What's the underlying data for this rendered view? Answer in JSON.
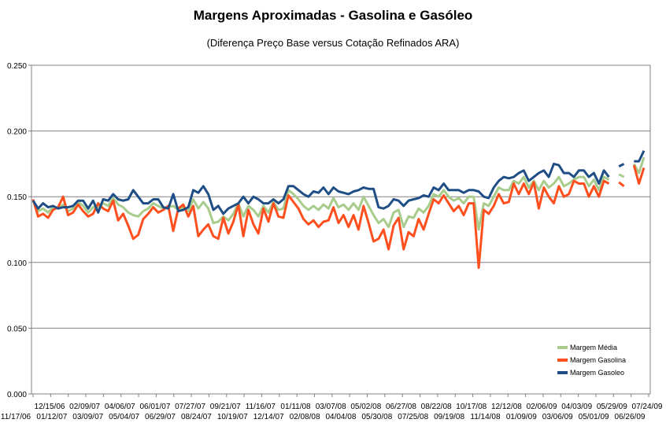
{
  "chart_data": {
    "type": "line",
    "title": "Margens Aproximadas - Gasolina e Gasóleo",
    "subtitle": "(Diferença Preço Base versus Cotação Refinados ARA)",
    "xlabel": "",
    "ylabel": "",
    "ylim": [
      0,
      0.25
    ],
    "y_ticks": [
      "0.000",
      "0.050",
      "0.100",
      "0.150",
      "0.200",
      "0.250"
    ],
    "grid": true,
    "legend_position": "bottom-right",
    "x_tick_labels_upper": [
      "12/15/06",
      "02/09/07",
      "04/06/07",
      "06/01/07",
      "07/27/07",
      "09/21/07",
      "11/16/07",
      "01/11/08",
      "03/07/08",
      "05/02/08",
      "06/27/08",
      "08/22/08",
      "10/17/08",
      "12/12/08",
      "02/06/09",
      "04/03/09",
      "05/29/09",
      "07/24/09"
    ],
    "x_tick_labels_lower": [
      "11/17/06",
      "01/12/07",
      "03/09/07",
      "05/04/07",
      "06/29/07",
      "08/24/07",
      "10/19/07",
      "12/14/07",
      "02/08/08",
      "04/04/08",
      "05/30/08",
      "07/25/08",
      "09/19/08",
      "11/14/08",
      "01/09/09",
      "03/06/09",
      "05/01/09",
      "06/26/09"
    ],
    "series": [
      {
        "name": "Margem Média",
        "color": "#a8cc8c",
        "values": [
          0.147,
          0.139,
          0.141,
          0.138,
          0.142,
          0.141,
          0.144,
          0.139,
          0.141,
          0.146,
          0.143,
          0.138,
          0.142,
          0.142,
          0.145,
          0.143,
          0.149,
          0.144,
          0.142,
          0.138,
          0.136,
          0.135,
          0.139,
          0.141,
          0.145,
          0.143,
          0.141,
          0.142,
          0.143,
          0.14,
          0.142,
          0.139,
          0.148,
          0.141,
          0.146,
          0.141,
          0.13,
          0.131,
          0.135,
          0.132,
          0.137,
          0.145,
          0.135,
          0.143,
          0.14,
          0.135,
          0.143,
          0.138,
          0.146,
          0.14,
          0.141,
          0.155,
          0.152,
          0.148,
          0.143,
          0.14,
          0.143,
          0.14,
          0.144,
          0.141,
          0.149,
          0.142,
          0.144,
          0.14,
          0.145,
          0.14,
          0.15,
          0.143,
          0.136,
          0.13,
          0.133,
          0.127,
          0.138,
          0.14,
          0.127,
          0.135,
          0.134,
          0.141,
          0.138,
          0.143,
          0.152,
          0.15,
          0.155,
          0.15,
          0.147,
          0.149,
          0.145,
          0.15,
          0.15,
          0.125,
          0.145,
          0.143,
          0.15,
          0.157,
          0.155,
          0.155,
          0.162,
          0.16,
          0.165,
          0.157,
          0.162,
          0.155,
          0.162,
          0.157,
          0.16,
          0.165,
          0.158,
          0.16,
          0.163,
          0.165,
          0.165,
          0.158,
          0.163,
          0.155,
          0.165,
          0.163,
          null,
          0.167,
          0.165,
          null,
          0.175,
          0.168,
          0.18
        ],
        "segments": [
          [
            0,
            115
          ],
          [
            117,
            118
          ],
          [
            120,
            122
          ]
        ]
      },
      {
        "name": "Margem Gasolina",
        "color": "#ff4f1e",
        "values": [
          0.148,
          0.135,
          0.137,
          0.134,
          0.14,
          0.142,
          0.15,
          0.136,
          0.138,
          0.144,
          0.139,
          0.135,
          0.137,
          0.145,
          0.141,
          0.139,
          0.147,
          0.132,
          0.137,
          0.128,
          0.118,
          0.121,
          0.133,
          0.137,
          0.142,
          0.138,
          0.14,
          0.143,
          0.124,
          0.141,
          0.144,
          0.135,
          0.143,
          0.12,
          0.125,
          0.129,
          0.12,
          0.118,
          0.134,
          0.122,
          0.131,
          0.144,
          0.12,
          0.14,
          0.129,
          0.122,
          0.141,
          0.131,
          0.145,
          0.135,
          0.134,
          0.151,
          0.146,
          0.141,
          0.133,
          0.129,
          0.132,
          0.127,
          0.131,
          0.132,
          0.142,
          0.13,
          0.136,
          0.127,
          0.136,
          0.125,
          0.143,
          0.13,
          0.116,
          0.118,
          0.125,
          0.11,
          0.128,
          0.134,
          0.11,
          0.123,
          0.12,
          0.133,
          0.125,
          0.137,
          0.148,
          0.145,
          0.151,
          0.145,
          0.139,
          0.143,
          0.136,
          0.145,
          0.145,
          0.096,
          0.14,
          0.137,
          0.143,
          0.152,
          0.145,
          0.146,
          0.16,
          0.152,
          0.16,
          0.152,
          0.161,
          0.141,
          0.157,
          0.15,
          0.145,
          0.158,
          0.15,
          0.152,
          0.162,
          0.16,
          0.16,
          0.15,
          0.158,
          0.15,
          0.162,
          0.16,
          null,
          0.161,
          0.158,
          null,
          0.174,
          0.16,
          0.172
        ],
        "segments": [
          [
            0,
            115
          ],
          [
            117,
            118
          ],
          [
            120,
            122
          ]
        ]
      },
      {
        "name": "Margem Gasoleo",
        "color": "#1f4e86",
        "values": [
          0.147,
          0.141,
          0.145,
          0.142,
          0.143,
          0.141,
          0.142,
          0.142,
          0.143,
          0.147,
          0.147,
          0.141,
          0.147,
          0.138,
          0.148,
          0.147,
          0.152,
          0.148,
          0.147,
          0.148,
          0.155,
          0.15,
          0.145,
          0.145,
          0.148,
          0.148,
          0.142,
          0.141,
          0.152,
          0.139,
          0.14,
          0.142,
          0.155,
          0.153,
          0.158,
          0.152,
          0.14,
          0.143,
          0.137,
          0.141,
          0.143,
          0.145,
          0.15,
          0.145,
          0.15,
          0.148,
          0.145,
          0.145,
          0.148,
          0.145,
          0.148,
          0.158,
          0.158,
          0.155,
          0.152,
          0.15,
          0.154,
          0.153,
          0.157,
          0.152,
          0.157,
          0.154,
          0.153,
          0.152,
          0.154,
          0.155,
          0.157,
          0.156,
          0.156,
          0.142,
          0.141,
          0.143,
          0.148,
          0.147,
          0.143,
          0.147,
          0.148,
          0.149,
          0.151,
          0.15,
          0.157,
          0.155,
          0.16,
          0.155,
          0.155,
          0.155,
          0.153,
          0.155,
          0.155,
          0.154,
          0.15,
          0.149,
          0.157,
          0.162,
          0.165,
          0.164,
          0.165,
          0.168,
          0.17,
          0.162,
          0.165,
          0.168,
          0.17,
          0.165,
          0.175,
          0.174,
          0.168,
          0.168,
          0.165,
          0.17,
          0.17,
          0.165,
          0.168,
          0.16,
          0.17,
          0.165,
          null,
          0.173,
          0.175,
          null,
          0.177,
          0.177,
          0.185
        ],
        "segments": [
          [
            0,
            115
          ],
          [
            117,
            118
          ],
          [
            120,
            122
          ]
        ]
      }
    ]
  }
}
